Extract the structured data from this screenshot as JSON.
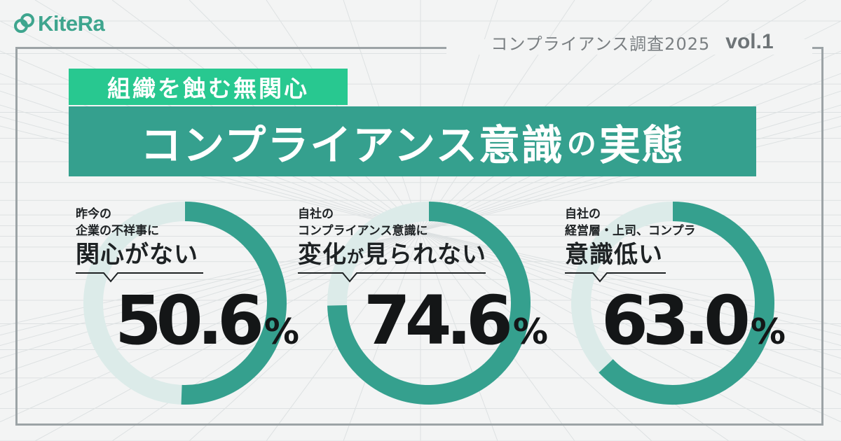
{
  "logo": {
    "name": "KiteRa",
    "color": "#3ea58e"
  },
  "survey": {
    "title": "コンプライアンス調査2025",
    "vol": "vol.1"
  },
  "banner": {
    "subtitle": "組織を蝕む無関心",
    "title_main": "コンプライアンス意識",
    "title_particle": "の",
    "title_end": "実態"
  },
  "colors": {
    "accent": "#35a08e",
    "subtitle_bg": "#28c890",
    "track": "#dcebe9",
    "frame": "#9ca3a6"
  },
  "stats": [
    {
      "line1": "昨今の",
      "line2": "企業の不祥事に",
      "headline": "関心がない",
      "headline_small": "",
      "headline_rest": "",
      "value": 50.6,
      "value_label": "50.6",
      "unit": "%"
    },
    {
      "line1": "自社の",
      "line2": "コンプライアンス意識に",
      "headline": "変化",
      "headline_small": "が",
      "headline_rest": "見られない",
      "value": 74.6,
      "value_label": "74.6",
      "unit": "%"
    },
    {
      "line1": "自社の",
      "line2": "経営層・上司、コンプラ",
      "headline": "意識低い",
      "headline_small": "",
      "headline_rest": "",
      "value": 63.0,
      "value_label": "63.0",
      "unit": "%"
    }
  ],
  "chart_data": {
    "type": "pie",
    "charts": [
      {
        "label": "関心がない",
        "value": 50.6,
        "unit": "%"
      },
      {
        "label": "変化が見られない",
        "value": 74.6,
        "unit": "%"
      },
      {
        "label": "意識低い",
        "value": 63.0,
        "unit": "%"
      }
    ]
  }
}
